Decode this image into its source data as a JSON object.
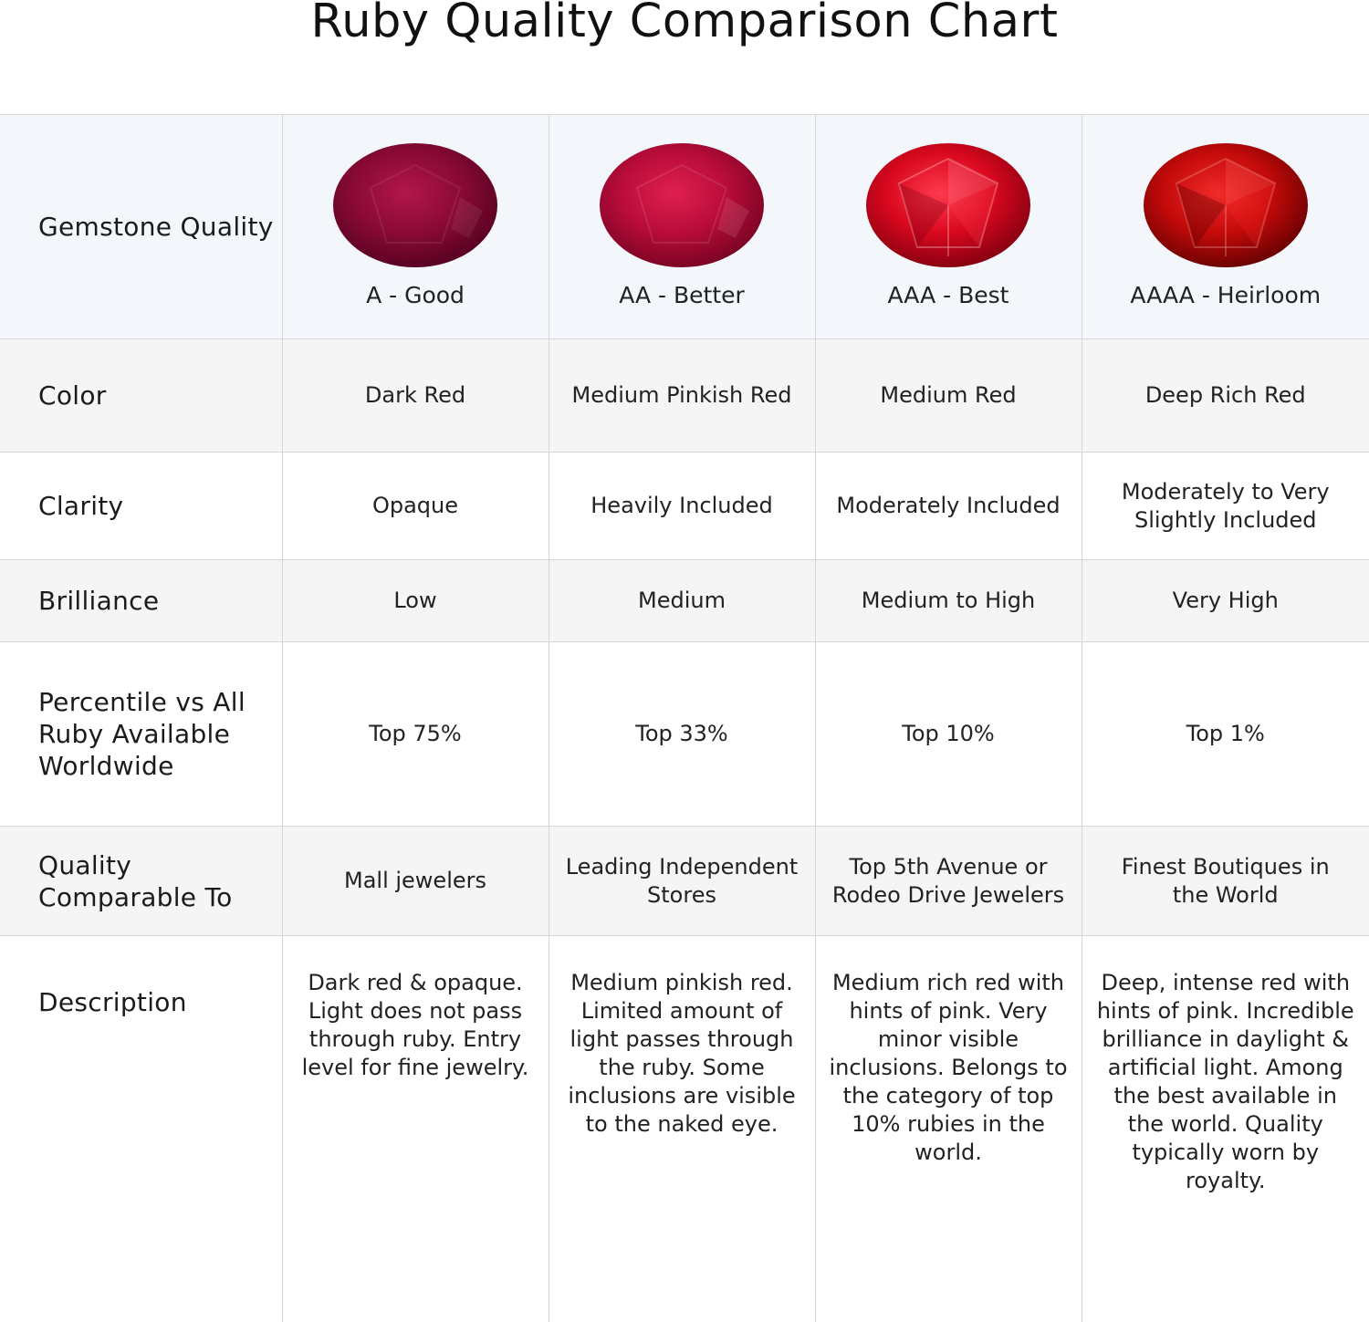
{
  "title": "Ruby Quality Comparison Chart",
  "row_labels": {
    "quality": "Gemstone Quality",
    "color": "Color",
    "clarity": "Clarity",
    "brilliance": "Brilliance",
    "percentile": "Percentile vs All Ruby Available Worldwide",
    "comparable": "Quality Comparable To",
    "description": "Description"
  },
  "grades": [
    {
      "label": "A - Good",
      "gem_colors": {
        "light": "#b3164a",
        "mid": "#8a0a35",
        "dark": "#5a0222"
      },
      "color": "Dark Red",
      "clarity": "Opaque",
      "brilliance": "Low",
      "percentile": "Top 75%",
      "comparable": "Mall jewelers",
      "description": "Dark red & opaque. Light does not pass through ruby. Entry level for fine jewelry."
    },
    {
      "label": "AA - Better",
      "gem_colors": {
        "light": "#e0204f",
        "mid": "#b80c3a",
        "dark": "#7d0424"
      },
      "color": "Medium Pinkish Red",
      "clarity": "Heavily Included",
      "brilliance": "Medium",
      "percentile": "Top 33%",
      "comparable": "Leading Independent Stores",
      "description": "Medium pinkish red. Limited amount of light passes through the ruby. Some inclusions are visible to the naked eye."
    },
    {
      "label": "AAA - Best",
      "gem_colors": {
        "light": "#ff3a4e",
        "mid": "#d8081e",
        "dark": "#8a0012"
      },
      "color": "Medium Red",
      "clarity": "Moderately Included",
      "brilliance": "Medium to High",
      "percentile": "Top 10%",
      "comparable": "Top 5th Avenue or Rodeo Drive Jewelers",
      "description": "Medium rich red with hints of pink. Very minor visible inclusions. Belongs to the category of top 10% rubies in the world."
    },
    {
      "label": "AAAA - Heirloom",
      "gem_colors": {
        "light": "#f22a2a",
        "mid": "#c40a0a",
        "dark": "#6e0202"
      },
      "color": "Deep Rich Red",
      "clarity": "Moderately to Very Slightly Included",
      "brilliance": "Very High",
      "percentile": "Top 1%",
      "comparable": "Finest Boutiques in the World",
      "description": "Deep, intense red with hints of pink. Incredible brilliance in daylight & artificial light. Among the best available in the world. Quality typically worn by royalty."
    }
  ]
}
